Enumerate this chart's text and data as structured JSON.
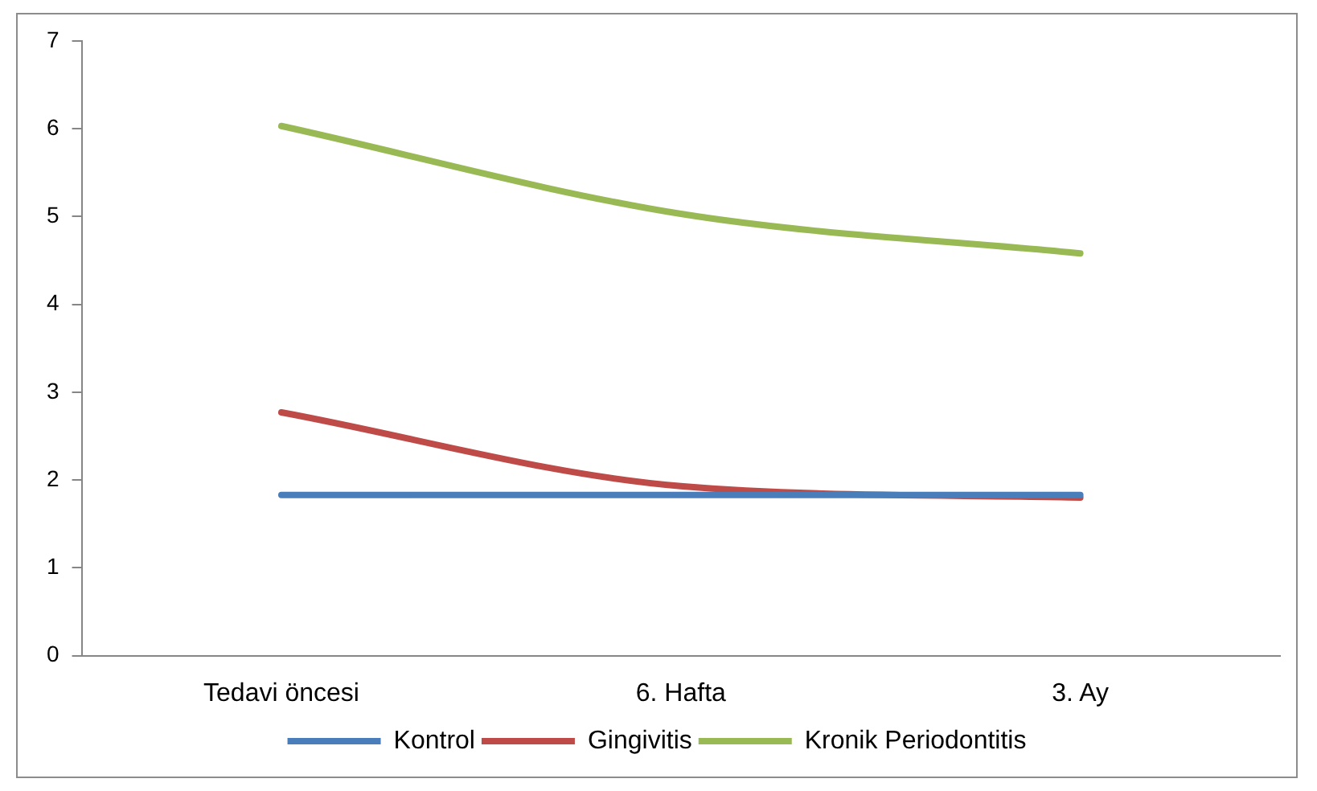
{
  "chart_data": {
    "type": "line",
    "categories": [
      "Tedavi öncesi",
      "6. Hafta",
      "3. Ay"
    ],
    "series": [
      {
        "name": "Kontrol",
        "color": "#4a7ebb",
        "values": [
          1.83,
          1.83,
          1.83
        ]
      },
      {
        "name": "Gingivitis",
        "color": "#be4b48",
        "values": [
          2.77,
          1.93,
          1.8
        ]
      },
      {
        "name": "Kronik Periodontitis",
        "color": "#98b954",
        "values": [
          6.03,
          5.03,
          4.58
        ]
      }
    ],
    "ylim": [
      0,
      7
    ],
    "yticks": [
      0,
      1,
      2,
      3,
      4,
      5,
      6,
      7
    ],
    "grid": false,
    "legend": "bottom",
    "marker": "none",
    "line_style": "solid"
  }
}
